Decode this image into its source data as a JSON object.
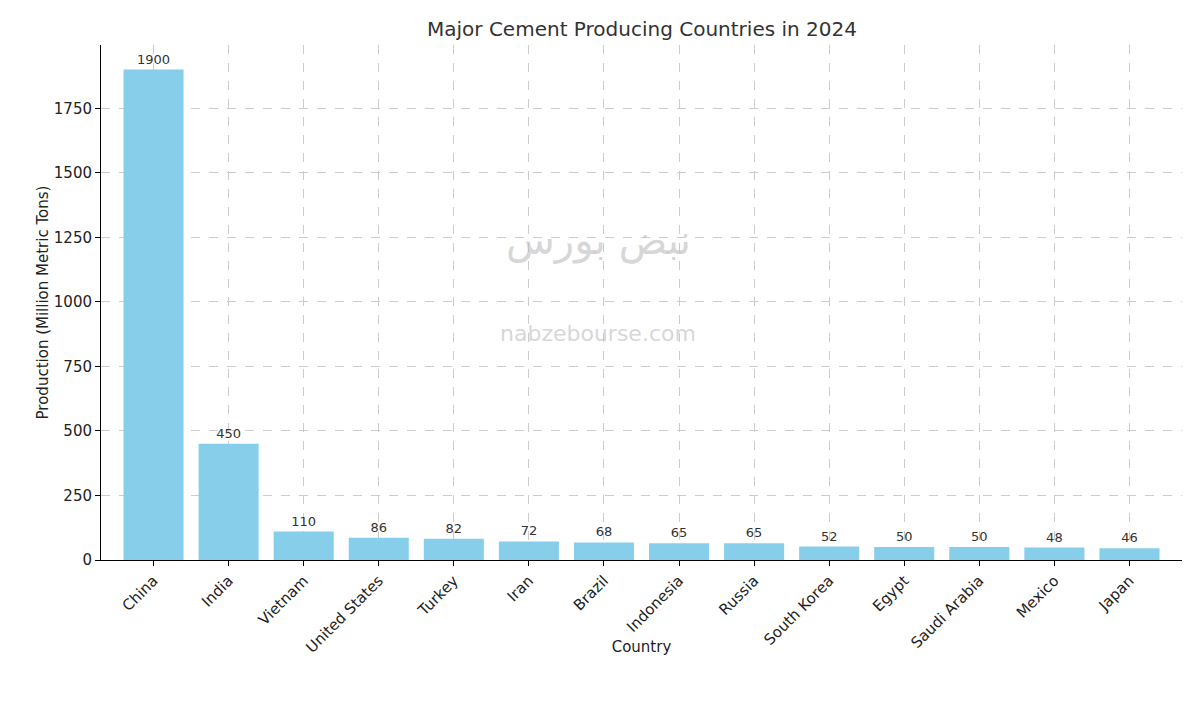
{
  "chart_data": {
    "type": "bar",
    "title": "Major Cement Producing Countries in 2024",
    "x_label": "Country",
    "y_label": "Production (Million Metric Tons)",
    "categories": [
      "China",
      "India",
      "Vietnam",
      "United States",
      "Turkey",
      "Iran",
      "Brazil",
      "Indonesia",
      "Russia",
      "South Korea",
      "Egypt",
      "Saudi Arabia",
      "Mexico",
      "Japan"
    ],
    "values": [
      1900,
      450,
      110,
      86,
      82,
      72,
      68,
      65,
      65,
      52,
      50,
      50,
      48,
      46
    ],
    "color": "#87ceeb",
    "ylim": [
      0,
      1995
    ],
    "yticks": [
      0,
      250,
      500,
      750,
      1000,
      1250,
      1500,
      1750
    ],
    "grid": true,
    "data_labels": true,
    "annotations": [
      "نبض بورس",
      "nabzebourse.com"
    ]
  }
}
